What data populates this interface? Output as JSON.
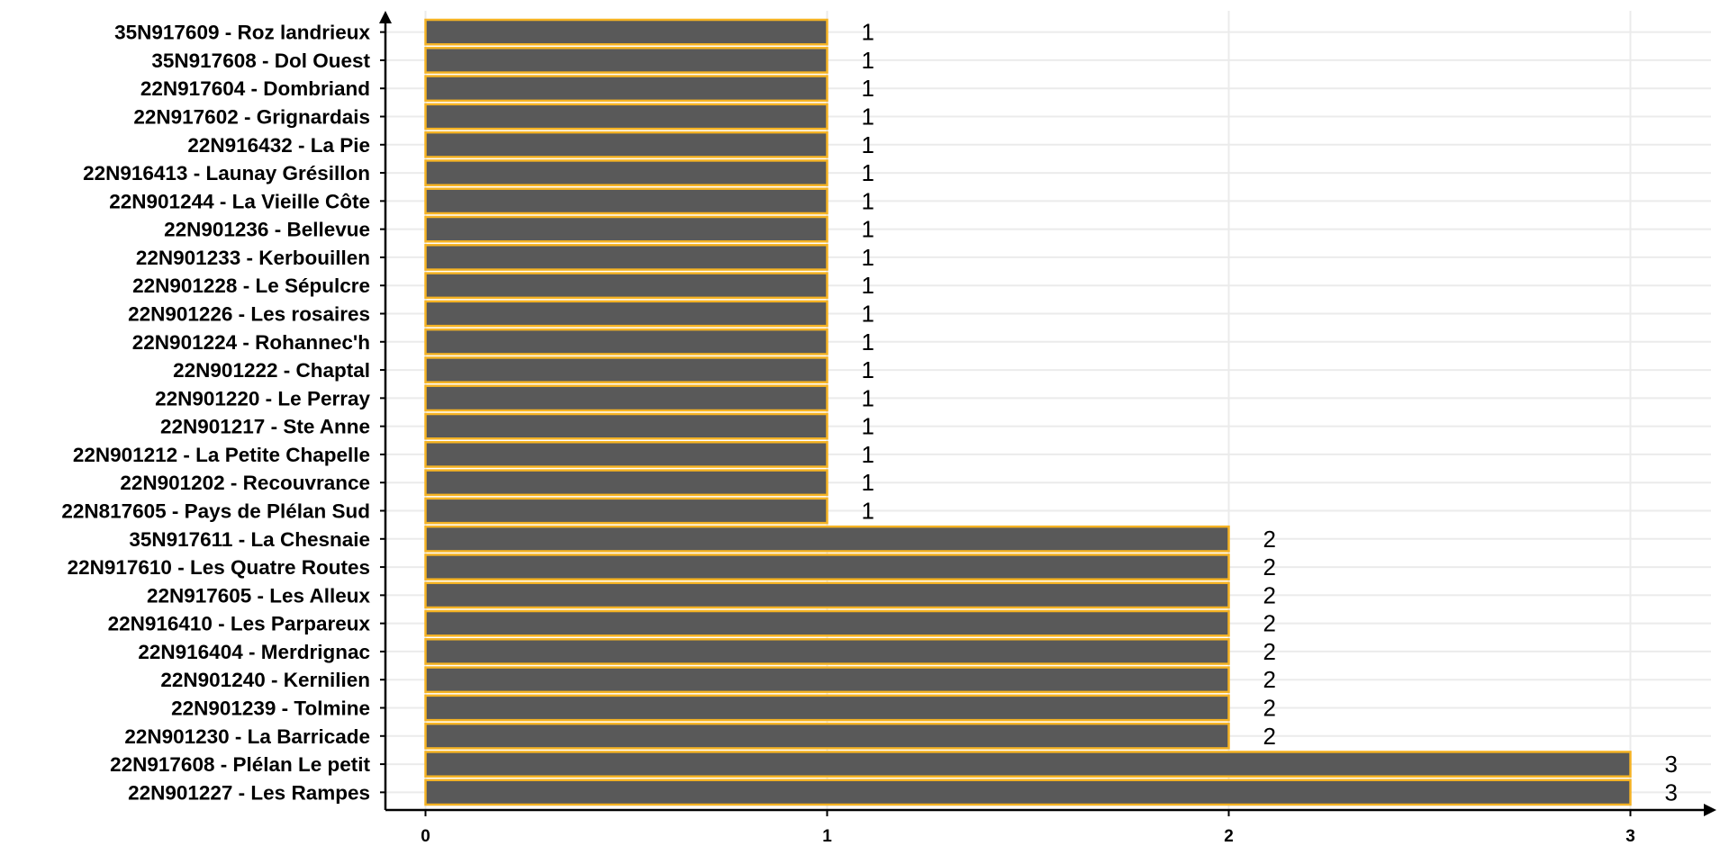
{
  "chart_data": {
    "type": "bar",
    "orientation": "horizontal",
    "title": "",
    "xlabel": "",
    "ylabel": "",
    "categories": [
      "35N917609 - Roz landrieux",
      "35N917608 - Dol Ouest",
      "22N917604 - Dombriand",
      "22N917602 - Grignardais",
      "22N916432 - La Pie",
      "22N916413 - Launay Grésillon",
      "22N901244 - La Vieille Côte",
      "22N901236 - Bellevue",
      "22N901233 - Kerbouillen",
      "22N901228 - Le Sépulcre",
      "22N901226 - Les rosaires",
      "22N901224 - Rohannec'h",
      "22N901222 - Chaptal",
      "22N901220 - Le Perray",
      "22N901217 - Ste Anne",
      "22N901212 - La Petite Chapelle",
      "22N901202 - Recouvrance",
      "22N817605 - Pays de Plélan Sud",
      "35N917611 - La Chesnaie",
      "22N917610 - Les Quatre Routes",
      "22N917605 - Les Alleux",
      "22N916410 - Les Parpareux",
      "22N916404 - Merdrignac",
      "22N901240 - Kernilien",
      "22N901239 - Tolmine",
      "22N901230 - La Barricade",
      "22N917608 - Plélan Le petit",
      "22N901227 - Les Rampes"
    ],
    "values": [
      1,
      1,
      1,
      1,
      1,
      1,
      1,
      1,
      1,
      1,
      1,
      1,
      1,
      1,
      1,
      1,
      1,
      1,
      2,
      2,
      2,
      2,
      2,
      2,
      2,
      2,
      3,
      3
    ],
    "value_labels": [
      "1",
      "1",
      "1",
      "1",
      "1",
      "1",
      "1",
      "1",
      "1",
      "1",
      "1",
      "1",
      "1",
      "1",
      "1",
      "1",
      "1",
      "1",
      "2",
      "2",
      "2",
      "2",
      "2",
      "2",
      "2",
      "2",
      "3",
      "3"
    ],
    "x_ticks": [
      0,
      1,
      2,
      3
    ],
    "x_tick_labels": [
      "0",
      "1",
      "2",
      "3"
    ],
    "xlim": [
      0,
      3.2
    ],
    "grid": true,
    "legend": "none",
    "colors": {
      "bar_fill": "#595959",
      "bar_stroke": "#f5b324",
      "grid": "#ebebeb",
      "axis": "#000000"
    }
  }
}
